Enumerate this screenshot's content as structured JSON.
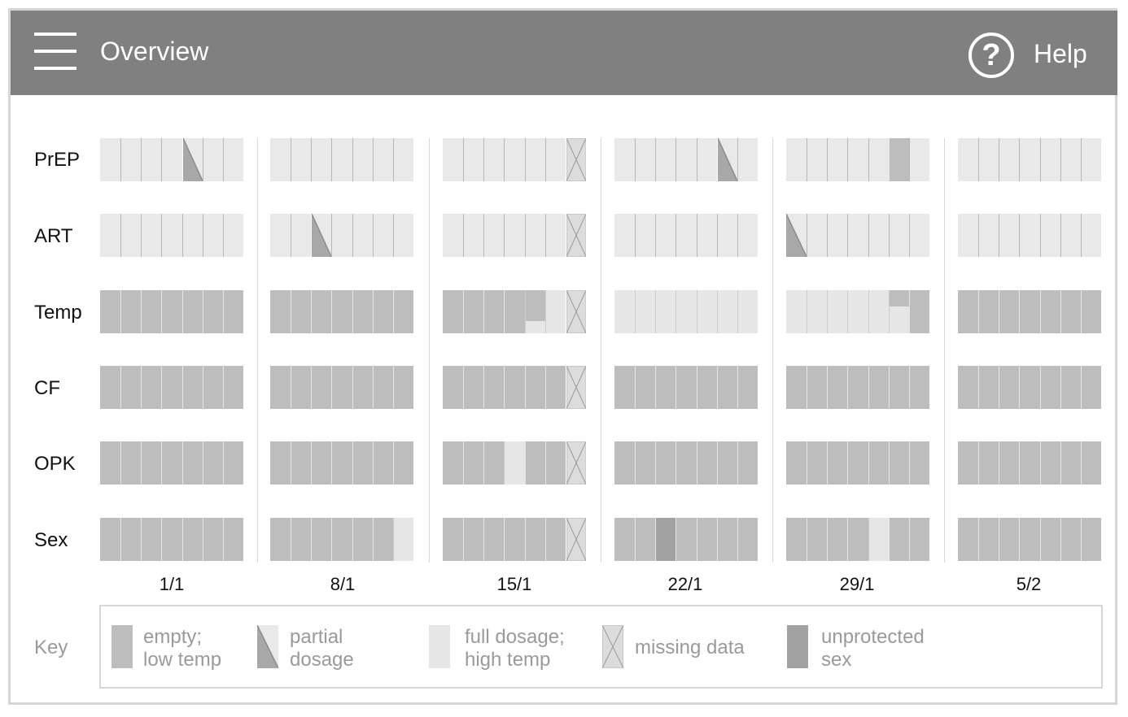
{
  "header": {
    "title": "Overview",
    "help_label": "Help",
    "help_symbol": "?",
    "menu_icon": "hamburger-menu-icon",
    "help_icon": "question-circle-icon"
  },
  "rows": [
    "PrEP",
    "ART",
    "Temp",
    "CF",
    "OPK",
    "Sex"
  ],
  "weeks": [
    "1/1",
    "8/1",
    "15/1",
    "22/1",
    "29/1",
    "5/2"
  ],
  "cell_states": {
    "PrEP": [
      [
        "light",
        "light",
        "light",
        "light",
        "partial",
        "light",
        "light"
      ],
      [
        "light",
        "light",
        "light",
        "light",
        "light",
        "light",
        "light"
      ],
      [
        "light",
        "light",
        "light",
        "light",
        "light",
        "light",
        "missing"
      ],
      [
        "light",
        "light",
        "light",
        "light",
        "light",
        "partial",
        "light"
      ],
      [
        "light",
        "light",
        "light",
        "light",
        "light",
        "mid",
        "light"
      ],
      [
        "light",
        "light",
        "light",
        "light",
        "light",
        "light",
        "light"
      ]
    ],
    "ART": [
      [
        "light",
        "light",
        "light",
        "light",
        "light",
        "light",
        "light"
      ],
      [
        "light",
        "light",
        "partial",
        "light",
        "light",
        "light",
        "light"
      ],
      [
        "light",
        "light",
        "light",
        "light",
        "light",
        "light",
        "missing"
      ],
      [
        "light",
        "light",
        "light",
        "light",
        "light",
        "light",
        "light"
      ],
      [
        "partial",
        "light",
        "light",
        "light",
        "light",
        "light",
        "light"
      ],
      [
        "light",
        "light",
        "light",
        "light",
        "light",
        "light",
        "light"
      ]
    ],
    "Temp": [
      [
        "mid",
        "mid",
        "mid",
        "mid",
        "mid",
        "mid",
        "mid"
      ],
      [
        "mid",
        "mid",
        "mid",
        "mid",
        "mid",
        "mid",
        "mid"
      ],
      [
        "mid",
        "mid",
        "mid",
        "mid",
        "pale",
        "pale",
        "missing"
      ],
      [
        "pale",
        "pale",
        "pale",
        "pale",
        "pale",
        "pale",
        "pale"
      ],
      [
        "pale",
        "pale",
        "pale",
        "pale",
        "pale",
        "pale",
        "mid"
      ],
      [
        "mid",
        "mid",
        "mid",
        "mid",
        "mid",
        "mid",
        "mid"
      ]
    ],
    "CF": [
      [
        "mid",
        "mid",
        "mid",
        "mid",
        "mid",
        "mid",
        "mid"
      ],
      [
        "mid",
        "mid",
        "mid",
        "mid",
        "mid",
        "mid",
        "mid"
      ],
      [
        "mid",
        "mid",
        "mid",
        "mid",
        "mid",
        "mid",
        "missing"
      ],
      [
        "mid",
        "mid",
        "mid",
        "mid",
        "mid",
        "mid",
        "mid"
      ],
      [
        "mid",
        "mid",
        "mid",
        "mid",
        "mid",
        "mid",
        "mid"
      ],
      [
        "mid",
        "mid",
        "mid",
        "mid",
        "mid",
        "mid",
        "mid"
      ]
    ],
    "OPK": [
      [
        "mid",
        "mid",
        "mid",
        "mid",
        "mid",
        "mid",
        "mid"
      ],
      [
        "mid",
        "mid",
        "mid",
        "mid",
        "mid",
        "mid",
        "mid"
      ],
      [
        "mid",
        "mid",
        "mid",
        "pale",
        "mid",
        "mid",
        "missing"
      ],
      [
        "mid",
        "mid",
        "mid",
        "mid",
        "mid",
        "mid",
        "mid"
      ],
      [
        "mid",
        "mid",
        "mid",
        "mid",
        "mid",
        "mid",
        "mid"
      ],
      [
        "mid",
        "mid",
        "mid",
        "mid",
        "mid",
        "mid",
        "mid"
      ]
    ],
    "Sex": [
      [
        "mid",
        "mid",
        "mid",
        "mid",
        "mid",
        "mid",
        "mid"
      ],
      [
        "mid",
        "mid",
        "mid",
        "mid",
        "mid",
        "mid",
        "pale"
      ],
      [
        "mid",
        "mid",
        "mid",
        "mid",
        "mid",
        "mid",
        "missing"
      ],
      [
        "mid",
        "mid",
        "dark",
        "mid",
        "mid",
        "mid",
        "mid"
      ],
      [
        "mid",
        "mid",
        "mid",
        "mid",
        "pale",
        "mid",
        "mid"
      ],
      [
        "mid",
        "mid",
        "mid",
        "mid",
        "mid",
        "mid",
        "mid"
      ]
    ]
  },
  "temp_levels": {
    "15/1": [
      null,
      null,
      null,
      null,
      "high",
      "high",
      null
    ],
    "29/1": [
      null,
      null,
      null,
      null,
      null,
      "high",
      null
    ]
  },
  "key": {
    "label": "Key",
    "items": [
      {
        "state": "mid",
        "text": "empty;\nlow temp"
      },
      {
        "state": "partial",
        "text": "partial\ndosage"
      },
      {
        "state": "pale",
        "text": "full dosage;\nhigh temp"
      },
      {
        "state": "missing",
        "text": "missing data"
      },
      {
        "state": "dark",
        "text": "unprotected\nsex"
      }
    ]
  },
  "colors": {
    "header": "#808080",
    "light": "#e9e9e9",
    "mid": "#bdbdbd",
    "pale": "#e6e6e6",
    "dark": "#a2a2a2",
    "partial_fill": "#a8a8a8",
    "missing_lines": "#9a9a9a"
  }
}
